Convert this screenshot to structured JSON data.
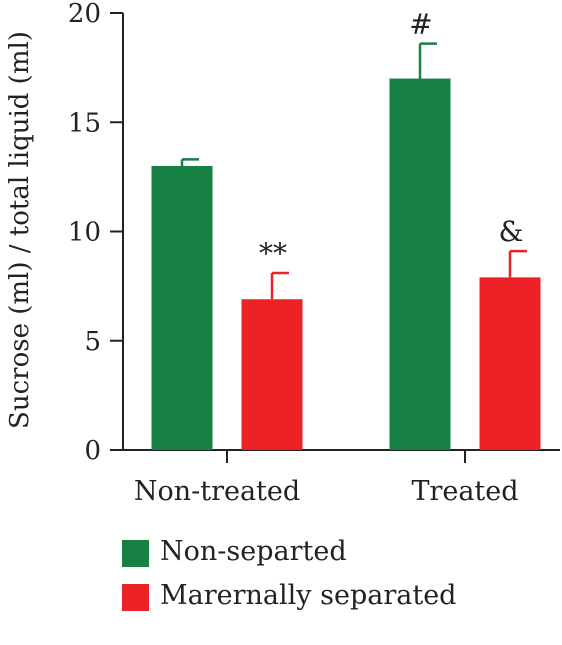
{
  "chart_data": {
    "type": "bar",
    "title": "",
    "xlabel": "",
    "ylabel": "Sucrose (ml) / total liquid (ml)",
    "ylim": [
      0,
      20
    ],
    "yticks": [
      0,
      5,
      10,
      15,
      20
    ],
    "grid": false,
    "legend_position": "bottom",
    "categories": [
      "Non-treated",
      "Treated"
    ],
    "series": [
      {
        "name": "Non-separted",
        "color": "#168142",
        "values": [
          13.0,
          17.0
        ],
        "errors": [
          0.3,
          1.6
        ]
      },
      {
        "name": "Marernally separated",
        "color": "#ed2227",
        "values": [
          6.9,
          7.9
        ],
        "errors": [
          1.2,
          1.2
        ]
      }
    ],
    "annotations": [
      {
        "category": "Non-treated",
        "series": "Marernally separated",
        "text": "**"
      },
      {
        "category": "Treated",
        "series": "Non-separted",
        "text": "#"
      },
      {
        "category": "Treated",
        "series": "Marernally separated",
        "text": "&"
      }
    ]
  }
}
